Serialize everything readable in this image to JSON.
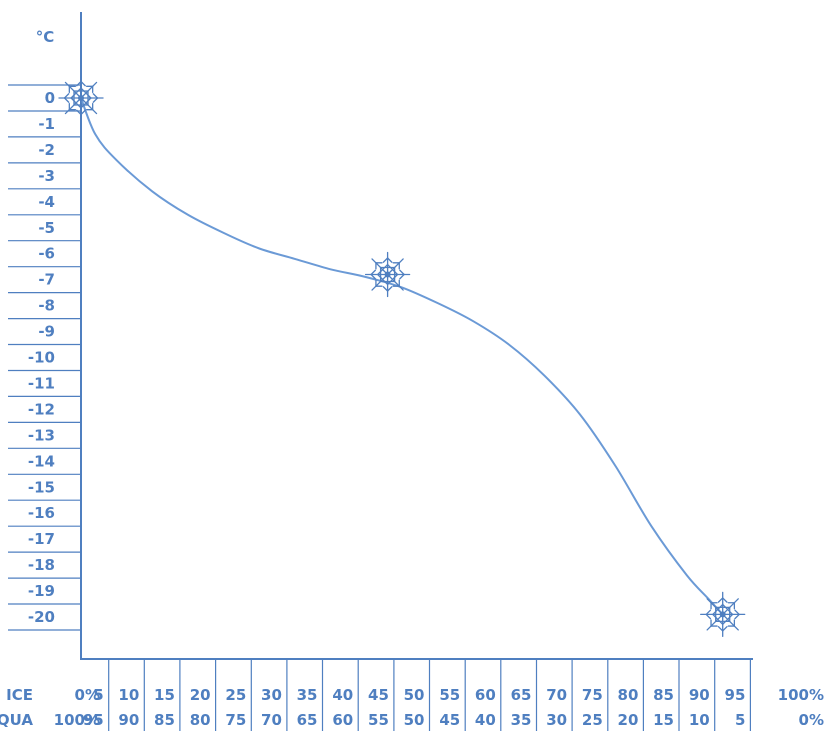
{
  "chart_data": {
    "type": "line",
    "title": "",
    "ylabel": "°C",
    "ylim": [
      -20,
      0
    ],
    "grid": false,
    "legend": "none",
    "y_ticks": [
      "0",
      "-1",
      "-2",
      "-3",
      "-4",
      "-5",
      "-6",
      "-7",
      "-8",
      "-9",
      "-10",
      "-11",
      "-12",
      "-13",
      "-14",
      "-15",
      "-16",
      "-17",
      "-18",
      "-19",
      "-20"
    ],
    "x_rows": [
      {
        "name": "ICE",
        "ticks": [
          "0%",
          "5",
          "10",
          "15",
          "20",
          "25",
          "30",
          "35",
          "40",
          "45",
          "50",
          "55",
          "60",
          "65",
          "70",
          "75",
          "80",
          "85",
          "90",
          "95",
          "100%"
        ]
      },
      {
        "name": "AQUA",
        "ticks": [
          "100%",
          "95",
          "90",
          "85",
          "80",
          "75",
          "70",
          "65",
          "60",
          "55",
          "50",
          "45",
          "40",
          "35",
          "30",
          "25",
          "20",
          "15",
          "10",
          "5",
          "0%"
        ]
      }
    ],
    "series": [
      {
        "x": [
          0,
          2,
          5,
          10,
          15,
          20,
          25,
          30,
          35,
          40,
          45,
          50,
          55,
          60,
          65,
          70,
          75,
          80,
          85,
          88,
          90
        ],
        "y": [
          0,
          -1.4,
          -2.4,
          -3.6,
          -4.5,
          -5.2,
          -5.8,
          -6.2,
          -6.6,
          -6.9,
          -7.3,
          -7.9,
          -8.6,
          -9.5,
          -10.7,
          -12.2,
          -14.2,
          -16.5,
          -18.4,
          -19.3,
          -19.9
        ]
      }
    ],
    "markers": [
      {
        "x": 0,
        "y": 0,
        "icon": "snowflake-icon"
      },
      {
        "x": 43,
        "y": -6.8,
        "icon": "snowflake-icon"
      },
      {
        "x": 90,
        "y": -19.9,
        "icon": "snowflake-icon"
      }
    ],
    "colors": {
      "primary": "#4f7fc0",
      "line": "#6b9ad6"
    }
  }
}
